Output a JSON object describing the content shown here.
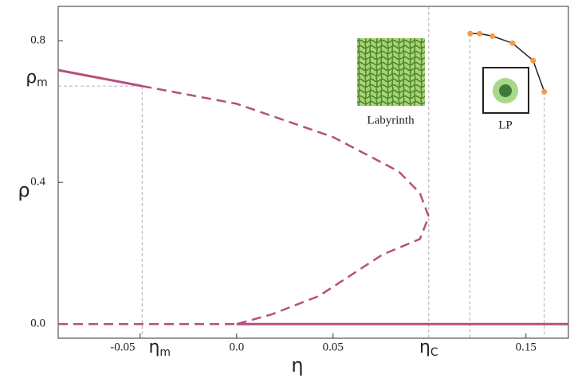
{
  "chart_data": {
    "type": "line",
    "x_label": "η",
    "y_label": "ρ",
    "xlim": [
      -0.0925,
      0.172
    ],
    "ylim": [
      -0.04,
      0.897
    ],
    "xticks": [
      -0.05,
      {
        "value": 0,
        "label": "0.0"
      },
      0.05,
      0.15
    ],
    "yticks": [
      {
        "value": 0,
        "label": "0.0"
      },
      0.4,
      0.8
    ],
    "x_markers": [
      {
        "label": "η",
        "sub": "m",
        "value": -0.049
      },
      {
        "label": "η",
        "sub": "C",
        "value": 0.0996
      }
    ],
    "y_markers": [
      {
        "label": "ρ",
        "sub": "m",
        "value": 0.672
      }
    ],
    "guides": [
      0.121,
      0.1595
    ],
    "series": [
      {
        "style": "solid",
        "color": "#b5507f",
        "x": [
          -0.0925,
          -0.049
        ],
        "y": [
          0.717,
          0.672
        ]
      },
      {
        "style": "dashed",
        "color": "#b5507f",
        "x": [
          -0.049,
          0,
          0.05,
          0.084,
          0.095,
          0.0996,
          0.095,
          0.0756,
          0.0426,
          0.018,
          0
        ],
        "y": [
          0.672,
          0.622,
          0.528,
          0.431,
          0.37,
          0.303,
          0.24,
          0.196,
          0.079,
          0.027,
          0
        ]
      },
      {
        "style": "dashed",
        "color": "#b5507f",
        "x": [
          -0.0925,
          0
        ],
        "y": [
          0,
          0
        ]
      },
      {
        "style": "solid",
        "color": "#b5507f",
        "x": [
          0,
          0.172
        ],
        "y": [
          0,
          0
        ]
      },
      {
        "style": "inset",
        "color": "#222222",
        "marker_color": "#f39a4c",
        "x": [
          0.1211,
          0.126,
          0.1326,
          0.143,
          0.1537,
          0.1595
        ],
        "y": [
          0.82,
          0.82,
          0.813,
          0.793,
          0.744,
          0.656
        ]
      }
    ],
    "annotations": [
      "Labyrinth",
      "LP"
    ]
  }
}
